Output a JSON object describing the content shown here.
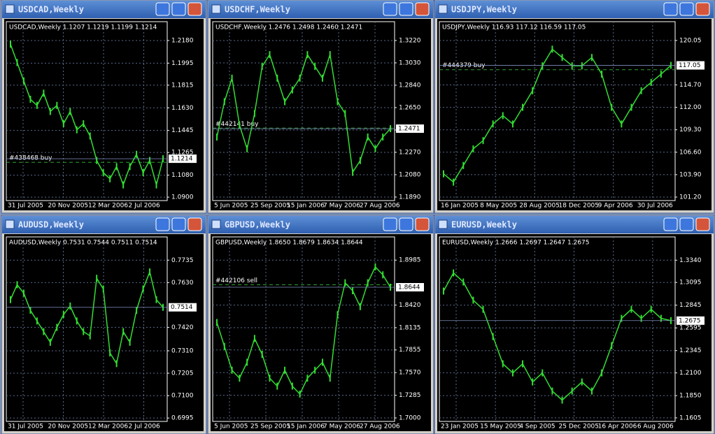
{
  "chart_data": [
    {
      "type": "line",
      "title": "USDCAD,Weekly",
      "subtitle": "USDCAD,Weekly  1.1207 1.1219 1.1199 1.1214",
      "xlabels": [
        "31 Jul 2005",
        "20 Nov 2005",
        "12 Mar 2006",
        "2 Jul 2006"
      ],
      "values": [
        1.215,
        1.2,
        1.185,
        1.17,
        1.165,
        1.175,
        1.16,
        1.165,
        1.15,
        1.16,
        1.145,
        1.15,
        1.14,
        1.12,
        1.11,
        1.105,
        1.115,
        1.1,
        1.115,
        1.125,
        1.11,
        1.12,
        1.1,
        1.1214
      ],
      "color": "#33dd33",
      "ylim": [
        1.0872,
        1.2334
      ],
      "yticks": [
        {
          "value": 1.218,
          "label": "1.2180"
        },
        {
          "value": 1.1995,
          "label": "1.1995"
        },
        {
          "value": 1.1815,
          "label": "1.1815"
        },
        {
          "value": 1.163,
          "label": "1.1630"
        },
        {
          "value": 1.1445,
          "label": "1.1445"
        },
        {
          "value": 1.1265,
          "label": "1.1265"
        },
        {
          "value": 1.108,
          "label": "1.1080"
        },
        {
          "value": 1.09,
          "label": "1.0900"
        }
      ],
      "price": {
        "value": 1.1214,
        "label": "1.1214"
      },
      "order": {
        "label": "#438468 buy",
        "value": 1.1185
      }
    },
    {
      "type": "line",
      "title": "USDCHF,Weekly",
      "subtitle": "USDCHF,Weekly  1.2476 1.2498 1.2460 1.2471",
      "xlabels": [
        "5 Jun 2005",
        "25 Sep 2005",
        "15 Jan 2006",
        "7 May 2006",
        "27 Aug 2006"
      ],
      "values": [
        1.24,
        1.27,
        1.29,
        1.25,
        1.23,
        1.26,
        1.3,
        1.31,
        1.29,
        1.27,
        1.28,
        1.29,
        1.31,
        1.3,
        1.29,
        1.31,
        1.27,
        1.26,
        1.21,
        1.22,
        1.24,
        1.23,
        1.24,
        1.2471
      ],
      "color": "#33dd33",
      "ylim": [
        1.186,
        1.338
      ],
      "yticks": [
        {
          "value": 1.322,
          "label": "1.3220"
        },
        {
          "value": 1.303,
          "label": "1.3030"
        },
        {
          "value": 1.284,
          "label": "1.2840"
        },
        {
          "value": 1.265,
          "label": "1.2650"
        },
        {
          "value": 1.246,
          "label": "1.2460"
        },
        {
          "value": 1.227,
          "label": "1.2270"
        },
        {
          "value": 1.208,
          "label": "1.2080"
        },
        {
          "value": 1.189,
          "label": "1.1890"
        }
      ],
      "price": {
        "value": 1.2471,
        "label": "1.2471"
      },
      "order": {
        "label": "#442141 buy",
        "value": 1.2476
      }
    },
    {
      "type": "line",
      "title": "USDJPY,Weekly",
      "subtitle": "USDJPY,Weekly  116.93 117.12 116.59 117.05",
      "xlabels": [
        "16 Jan 2005",
        "8 May 2005",
        "28 Aug 2005",
        "18 Dec 2005",
        "9 Apr 2006",
        "30 Jul 2006"
      ],
      "values": [
        104,
        103,
        105,
        107,
        108,
        110,
        111,
        110,
        112,
        114,
        117,
        119,
        118,
        117,
        117,
        118,
        116,
        112,
        110,
        112,
        114,
        115,
        116,
        117.05
      ],
      "color": "#33dd33",
      "ylim": [
        100.78,
        122.31
      ],
      "yticks": [
        {
          "value": 120.05,
          "label": "120.05"
        },
        {
          "value": 114.7,
          "label": "114.70"
        },
        {
          "value": 112,
          "label": "112.00"
        },
        {
          "value": 109.3,
          "label": "109.30"
        },
        {
          "value": 106.6,
          "label": "106.60"
        },
        {
          "value": 103.9,
          "label": "103.90"
        },
        {
          "value": 101.2,
          "label": "101.20"
        }
      ],
      "price": {
        "value": 117.05,
        "label": "117.05"
      },
      "order": {
        "label": "#444379 buy",
        "value": 116.53
      }
    },
    {
      "type": "line",
      "title": "AUDUSD,Weekly",
      "subtitle": "AUDUSD,Weekly  0.7531 0.7544 0.7511 0.7514",
      "xlabels": [
        "31 Jul 2005",
        "20 Nov 2005",
        "12 Mar 2006",
        "2 Jul 2006"
      ],
      "values": [
        0.755,
        0.762,
        0.758,
        0.75,
        0.745,
        0.74,
        0.735,
        0.742,
        0.748,
        0.752,
        0.745,
        0.74,
        0.738,
        0.765,
        0.76,
        0.73,
        0.725,
        0.74,
        0.735,
        0.75,
        0.76,
        0.768,
        0.755,
        0.7514
      ],
      "color": "#33dd33",
      "ylim": [
        0.6979,
        0.7844
      ],
      "yticks": [
        {
          "value": 0.7735,
          "label": "0.7735"
        },
        {
          "value": 0.763,
          "label": "0.7630"
        },
        {
          "value": 0.742,
          "label": "0.7420"
        },
        {
          "value": 0.731,
          "label": "0.7310"
        },
        {
          "value": 0.7205,
          "label": "0.7205"
        },
        {
          "value": 0.71,
          "label": "0.7100"
        },
        {
          "value": 0.6995,
          "label": "0.6995"
        }
      ],
      "price": {
        "value": 0.7514,
        "label": "0.7514"
      }
    },
    {
      "type": "line",
      "title": "GBPUSD,Weekly",
      "subtitle": "GBPUSD,Weekly  1.8650 1.8679 1.8634 1.8644",
      "xlabels": [
        "5 Jun 2005",
        "25 Sep 2005",
        "15 Jan 2006",
        "7 May 2006",
        "27 Aug 2006"
      ],
      "values": [
        1.82,
        1.79,
        1.76,
        1.75,
        1.77,
        1.8,
        1.78,
        1.75,
        1.74,
        1.76,
        1.74,
        1.73,
        1.75,
        1.76,
        1.77,
        1.75,
        1.83,
        1.87,
        1.86,
        1.84,
        1.87,
        1.89,
        1.88,
        1.8644
      ],
      "color": "#33dd33",
      "ylim": [
        1.6956,
        1.9277
      ],
      "yticks": [
        {
          "value": 1.8985,
          "label": "1.8985"
        },
        {
          "value": 1.842,
          "label": "1.8420"
        },
        {
          "value": 1.8135,
          "label": "1.8135"
        },
        {
          "value": 1.7855,
          "label": "1.7855"
        },
        {
          "value": 1.757,
          "label": "1.7570"
        },
        {
          "value": 1.7285,
          "label": "1.7285"
        },
        {
          "value": 1.7,
          "label": "1.7000"
        }
      ],
      "price": {
        "value": 1.8644,
        "label": "1.8644"
      },
      "order": {
        "label": "#442106 sell",
        "value": 1.8675
      }
    },
    {
      "type": "line",
      "title": "EURUSD,Weekly",
      "subtitle": "EURUSD,Weekly  1.2666 1.2697 1.2647 1.2675",
      "xlabels": [
        "23 Jan 2005",
        "15 May 2005",
        "4 Sep 2005",
        "25 Dec 2005",
        "16 Apr 2006",
        "6 Aug 2006"
      ],
      "values": [
        1.3,
        1.32,
        1.31,
        1.29,
        1.28,
        1.25,
        1.22,
        1.21,
        1.22,
        1.2,
        1.21,
        1.19,
        1.18,
        1.19,
        1.2,
        1.19,
        1.21,
        1.24,
        1.27,
        1.28,
        1.27,
        1.28,
        1.27,
        1.2675
      ],
      "color": "#33dd33",
      "ylim": [
        1.1566,
        1.3596
      ],
      "yticks": [
        {
          "value": 1.334,
          "label": "1.3340"
        },
        {
          "value": 1.3095,
          "label": "1.3095"
        },
        {
          "value": 1.2845,
          "label": "1.2845"
        },
        {
          "value": 1.2595,
          "label": "1.2595"
        },
        {
          "value": 1.2345,
          "label": "1.2345"
        },
        {
          "value": 1.21,
          "label": "1.2100"
        },
        {
          "value": 1.185,
          "label": "1.1850"
        },
        {
          "value": 1.1605,
          "label": "1.1605"
        }
      ],
      "price": {
        "value": 1.2675,
        "label": "1.2675"
      }
    }
  ]
}
